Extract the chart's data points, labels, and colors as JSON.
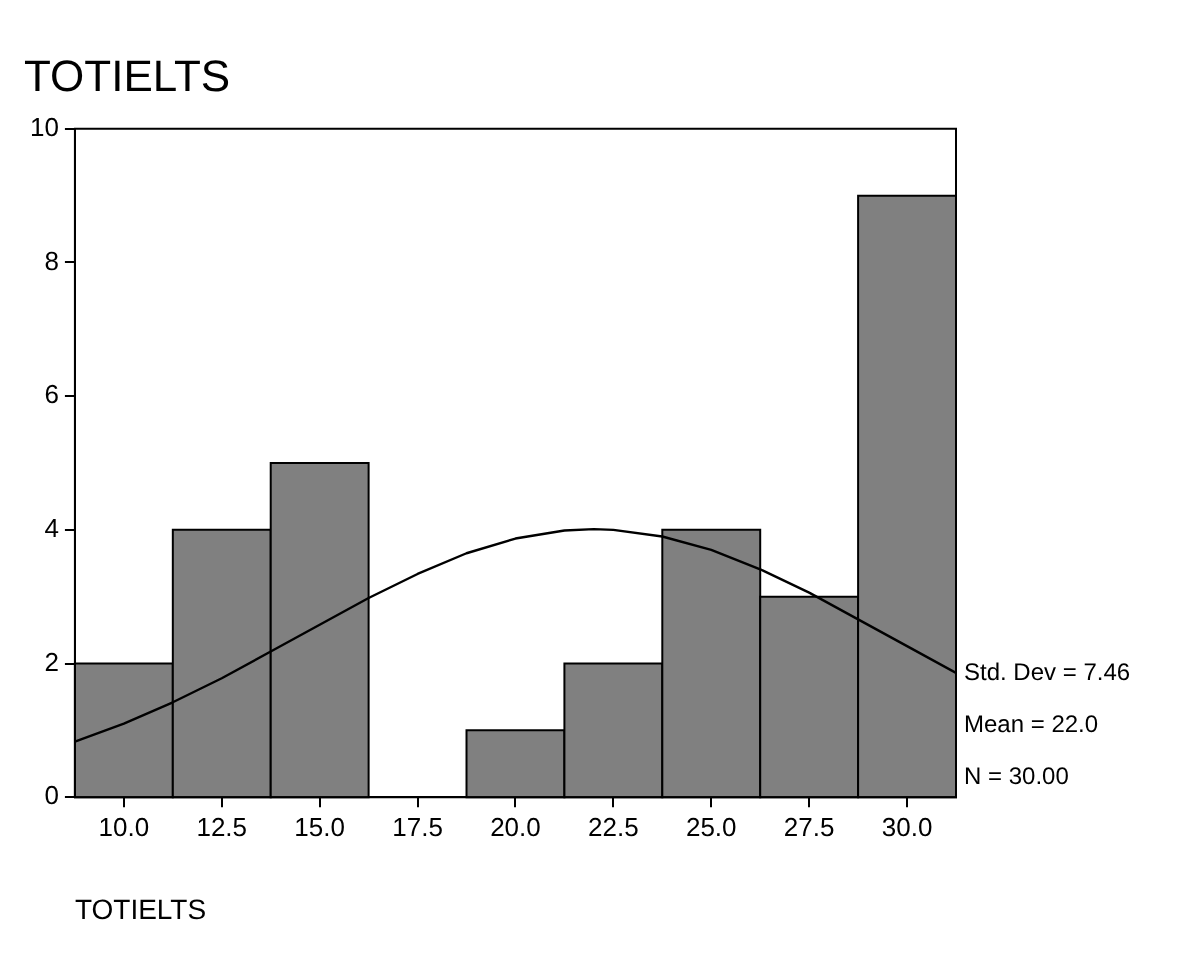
{
  "chart_data": {
    "type": "histogram",
    "title": "TOTIELTS",
    "xlabel": "TOTIELTS",
    "bins": [
      8.75,
      11.25,
      13.75,
      16.25,
      18.75,
      21.25,
      23.75,
      26.25,
      28.75,
      31.25
    ],
    "values": [
      2,
      4,
      5,
      0,
      1,
      2,
      4,
      3,
      9
    ],
    "color": "#808080",
    "series": [
      {
        "type": "line",
        "color": "#000000",
        "x": [
          8.75,
          10,
          11.25,
          12.5,
          13.75,
          15,
          16.25,
          17.5,
          18.75,
          20,
          21.25,
          22,
          22.5,
          23.75,
          25,
          26.25,
          27.5,
          28.75,
          30,
          31.25
        ],
        "values": [
          0.83,
          1.1,
          1.42,
          1.78,
          2.18,
          2.58,
          2.98,
          3.34,
          3.65,
          3.87,
          3.99,
          4.01,
          4.0,
          3.9,
          3.7,
          3.41,
          3.06,
          2.66,
          2.26,
          1.86
        ]
      }
    ],
    "xlim": [
      8.75,
      31.25
    ],
    "xticks": [
      {
        "value": 10,
        "label": "10.0"
      },
      {
        "value": 12.5,
        "label": "12.5"
      },
      {
        "value": 15,
        "label": "15.0"
      },
      {
        "value": 17.5,
        "label": "17.5"
      },
      {
        "value": 20,
        "label": "20.0"
      },
      {
        "value": 22.5,
        "label": "22.5"
      },
      {
        "value": 25,
        "label": "25.0"
      },
      {
        "value": 27.5,
        "label": "27.5"
      },
      {
        "value": 30,
        "label": "30.0"
      }
    ],
    "ylim": [
      0,
      10
    ],
    "yticks": [
      0,
      2,
      4,
      6,
      8,
      10
    ],
    "annotations": [
      "Std. Dev = 7.46",
      "Mean = 22.0",
      "N = 30.00"
    ],
    "legend": false
  }
}
